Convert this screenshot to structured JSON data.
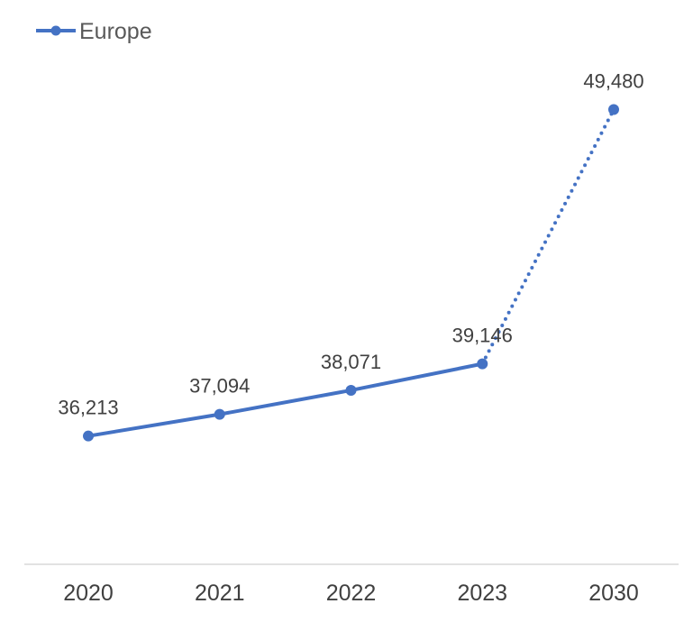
{
  "chart_data": {
    "type": "line",
    "categories": [
      "2020",
      "2021",
      "2022",
      "2023",
      "2030"
    ],
    "series": [
      {
        "name": "Europe",
        "values": [
          36213,
          37094,
          38071,
          39146,
          49480
        ],
        "data_labels": [
          "36,213",
          "37,094",
          "38,071",
          "39,146",
          "49,480"
        ],
        "projected_from_index": 3
      }
    ],
    "ylim": [
      31000,
      51000
    ],
    "grid": false,
    "legend_position": "top-left",
    "colors": {
      "series": "#4472c4",
      "axis": "#d9d9d9"
    }
  }
}
